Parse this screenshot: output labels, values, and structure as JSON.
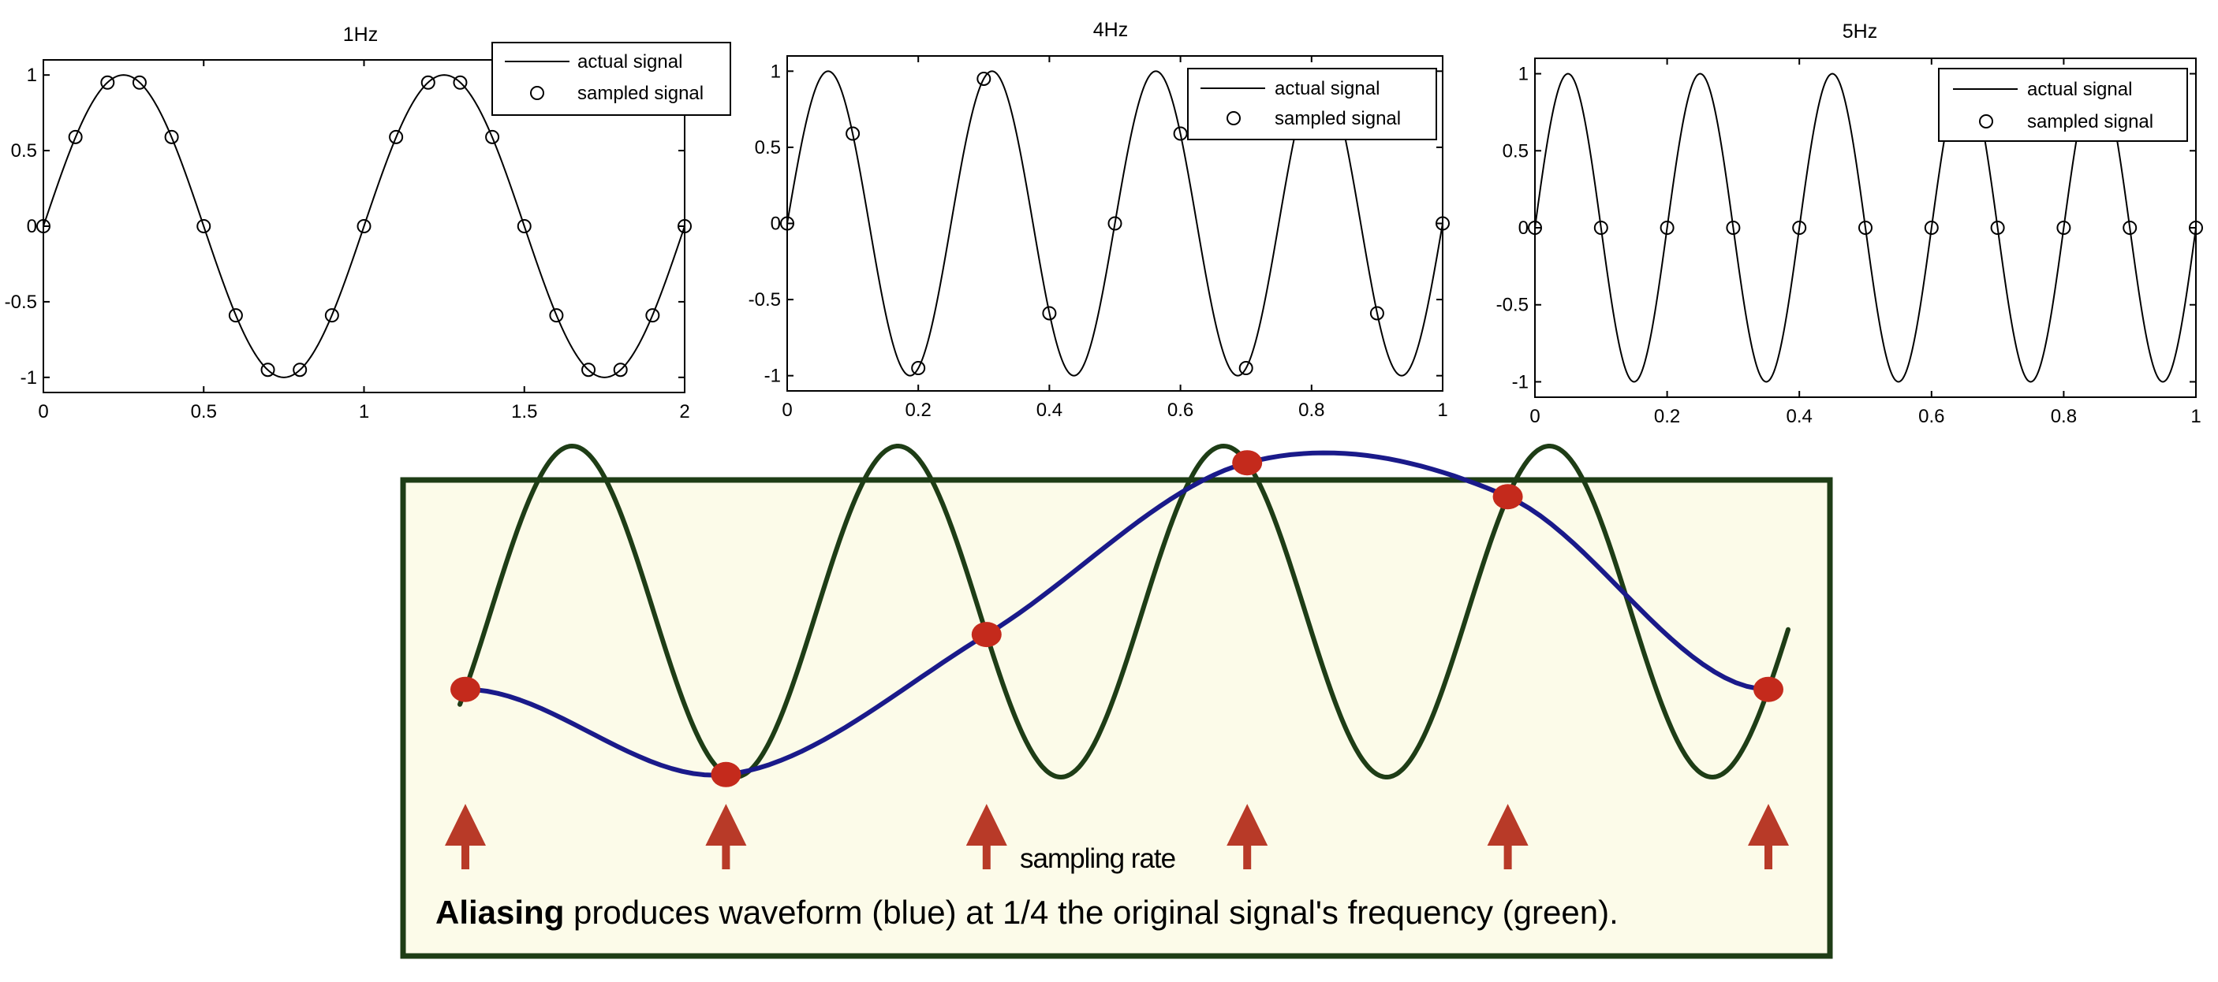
{
  "chart_data": [
    {
      "type": "line",
      "title": "1Hz",
      "xlim": [
        0,
        2
      ],
      "ylim": [
        -1.1,
        1.1
      ],
      "xticks": [
        "0",
        "0.5",
        "1",
        "1.5",
        "2"
      ],
      "yticks": [
        "1",
        "0.5",
        "0",
        "-0.5",
        "-1"
      ],
      "legend_placement": "top-right",
      "grid": false,
      "series": [
        {
          "name": "actual signal",
          "style": "line",
          "frequency_hz": 1,
          "x": [
            0,
            0.1,
            0.2,
            0.3,
            0.4,
            0.5,
            0.6,
            0.7,
            0.8,
            0.9,
            1.0,
            1.1,
            1.2,
            1.3,
            1.4,
            1.5,
            1.6,
            1.7,
            1.8,
            1.9,
            2.0
          ],
          "y": [
            0,
            0.59,
            0.95,
            0.95,
            0.59,
            0,
            -0.59,
            -0.95,
            -0.95,
            -0.59,
            0,
            0.59,
            0.95,
            0.95,
            0.59,
            0,
            -0.59,
            -0.95,
            -0.95,
            -0.59,
            0
          ]
        },
        {
          "name": "sampled signal",
          "style": "markers",
          "x": [
            0,
            0.1,
            0.2,
            0.3,
            0.4,
            0.5,
            0.6,
            0.7,
            0.8,
            0.9,
            1.0,
            1.1,
            1.2,
            1.3,
            1.4,
            1.5,
            1.6,
            1.7,
            1.8,
            1.9,
            2.0
          ],
          "y": [
            0,
            0.59,
            0.95,
            0.95,
            0.59,
            0,
            -0.59,
            -0.95,
            -0.95,
            -0.59,
            0,
            0.59,
            0.95,
            0.95,
            0.59,
            0,
            -0.59,
            -0.95,
            -0.95,
            -0.59,
            0
          ]
        }
      ]
    },
    {
      "type": "line",
      "title": "4Hz",
      "xlim": [
        0,
        1
      ],
      "ylim": [
        -1.1,
        1.1
      ],
      "xticks": [
        "0",
        "0.2",
        "0.4",
        "0.6",
        "0.8",
        "1"
      ],
      "yticks": [
        "1",
        "0.5",
        "0",
        "-0.5",
        "-1"
      ],
      "legend_placement": "top-right",
      "grid": false,
      "series": [
        {
          "name": "actual signal",
          "style": "line",
          "frequency_hz": 4,
          "x": [
            0,
            0.0625,
            0.125,
            0.1875,
            0.25,
            0.3125,
            0.375,
            0.4375,
            0.5,
            0.5625,
            0.625,
            0.6875,
            0.75,
            0.8125,
            0.875,
            0.9375,
            1.0
          ],
          "y": [
            0,
            1,
            0,
            -1,
            0,
            1,
            0,
            -1,
            0,
            1,
            0,
            -1,
            0,
            1,
            0,
            -1,
            0
          ]
        },
        {
          "name": "sampled signal",
          "style": "markers",
          "x": [
            0,
            0.1,
            0.2,
            0.3,
            0.4,
            0.5,
            0.6,
            0.7,
            0.8,
            0.9,
            1.0
          ],
          "y": [
            0,
            0.59,
            -0.95,
            0.95,
            -0.59,
            0,
            0.59,
            -0.95,
            0.95,
            -0.59,
            0
          ]
        }
      ]
    },
    {
      "type": "line",
      "title": "5Hz",
      "xlim": [
        0,
        1
      ],
      "ylim": [
        -1.1,
        1.1
      ],
      "xticks": [
        "0",
        "0.2",
        "0.4",
        "0.6",
        "0.8",
        "1"
      ],
      "yticks": [
        "1",
        "0.5",
        "0",
        "-0.5",
        "-1"
      ],
      "legend_placement": "top-right",
      "grid": false,
      "series": [
        {
          "name": "actual signal",
          "style": "line",
          "frequency_hz": 5,
          "x": [
            0,
            0.05,
            0.1,
            0.15,
            0.2,
            0.25,
            0.3,
            0.35,
            0.4,
            0.45,
            0.5,
            0.55,
            0.6,
            0.65,
            0.7,
            0.75,
            0.8,
            0.85,
            0.9,
            0.95,
            1.0
          ],
          "y": [
            0,
            1,
            0,
            -1,
            0,
            1,
            0,
            -1,
            0,
            1,
            0,
            -1,
            0,
            1,
            0,
            -1,
            0,
            1,
            0,
            -1,
            0
          ]
        },
        {
          "name": "sampled signal",
          "style": "markers",
          "x": [
            0,
            0.1,
            0.2,
            0.3,
            0.4,
            0.5,
            0.6,
            0.7,
            0.8,
            0.9,
            1.0
          ],
          "y": [
            0,
            0,
            0,
            0,
            0,
            0,
            0,
            0,
            0,
            0,
            0
          ]
        }
      ]
    }
  ],
  "legend": {
    "line_label": "actual signal",
    "marker_label": "sampled signal"
  },
  "aliasing_figure": {
    "sampling_label": "sampling rate",
    "caption_bold": "Aliasing",
    "caption_rest": " produces waveform (blue) at 1/4 the original signal's frequency (green).",
    "sample_count": 6,
    "colors": {
      "background": "#fcfbe9",
      "border": "#1e3d16",
      "original_signal": "#1e3d16",
      "alias_signal": "#1a1a8a",
      "sample_points": "#c42a1c",
      "arrows": "#b83a28"
    }
  }
}
